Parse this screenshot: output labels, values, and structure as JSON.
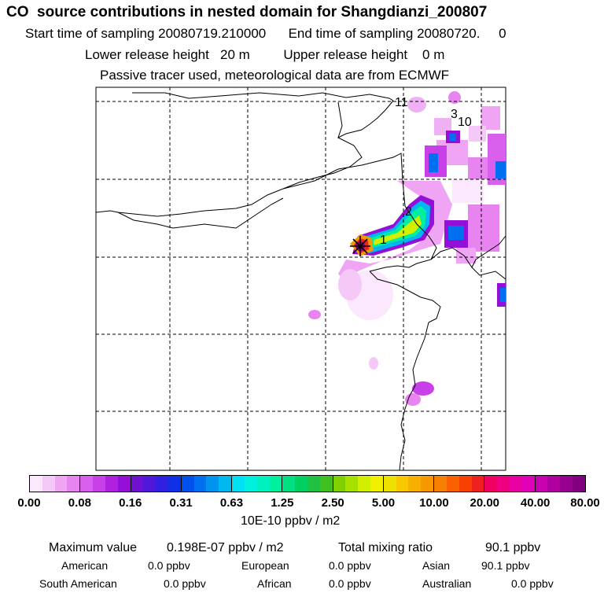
{
  "header": {
    "title": "CO  source contributions in nested domain for Shangdianzi_200807",
    "start_label": "Start time of sampling",
    "start_value": "20080719.210000",
    "end_label": "End time of sampling",
    "end_value": "20080720.",
    "end_suffix": "0",
    "lower_label": "Lower release height",
    "lower_value": "20 m",
    "upper_label": "Upper release height",
    "upper_value": "0 m",
    "note": "Passive tracer used, meteorological data are from ECMWF"
  },
  "map": {
    "markers": [
      {
        "id": "1",
        "label": "1"
      },
      {
        "id": "2",
        "label": "2"
      },
      {
        "id": "3",
        "label": "3"
      },
      {
        "id": "10",
        "label": "10"
      },
      {
        "id": "11",
        "label": "11"
      }
    ]
  },
  "legend": {
    "tick_labels": [
      "0.00",
      "0.08",
      "0.16",
      "0.31",
      "0.63",
      "1.25",
      "2.50",
      "5.00",
      "10.00",
      "20.00",
      "40.00",
      "80.00"
    ],
    "colors": [
      [
        "#fce8fc",
        "#f6c8f8",
        "#f0a4f4",
        "#e884f0"
      ],
      [
        "#d860ec",
        "#c840e8",
        "#b020e0",
        "#9410d8"
      ],
      [
        "#7010d0",
        "#5018d8",
        "#3020e0",
        "#1030e8"
      ],
      [
        "#0050f0",
        "#0070f0",
        "#0094f0",
        "#00b8f0"
      ],
      [
        "#00e0f0",
        "#00f0e0",
        "#00f0c0",
        "#00f0a0"
      ],
      [
        "#00e080",
        "#00d060",
        "#20c040",
        "#40c020"
      ],
      [
        "#80d000",
        "#a8e000",
        "#d0f000",
        "#f0f000"
      ],
      [
        "#f0e000",
        "#f8c800",
        "#f8b000",
        "#f89800"
      ],
      [
        "#f88000",
        "#f86000",
        "#f84000",
        "#f02020"
      ],
      [
        "#f00060",
        "#f00080",
        "#e800a0",
        "#e000b8"
      ],
      [
        "#c800b0",
        "#b000a0",
        "#980090",
        "#800080"
      ]
    ],
    "units": "10E-10 ppbv / m2"
  },
  "stats": {
    "max_label": "Maximum value",
    "max_value": "0.198E-07 ppbv / m2",
    "total_label": "Total mixing ratio",
    "total_value": "90.1 ppbv",
    "regions": [
      {
        "name": "American",
        "value": "0.0 ppbv"
      },
      {
        "name": "European",
        "value": "0.0 ppbv"
      },
      {
        "name": "Asian",
        "value": "90.1 ppbv"
      },
      {
        "name": "South American",
        "value": "0.0 ppbv"
      },
      {
        "name": "African",
        "value": "0.0 ppbv"
      },
      {
        "name": "Australian",
        "value": "0.0 ppbv"
      }
    ]
  }
}
